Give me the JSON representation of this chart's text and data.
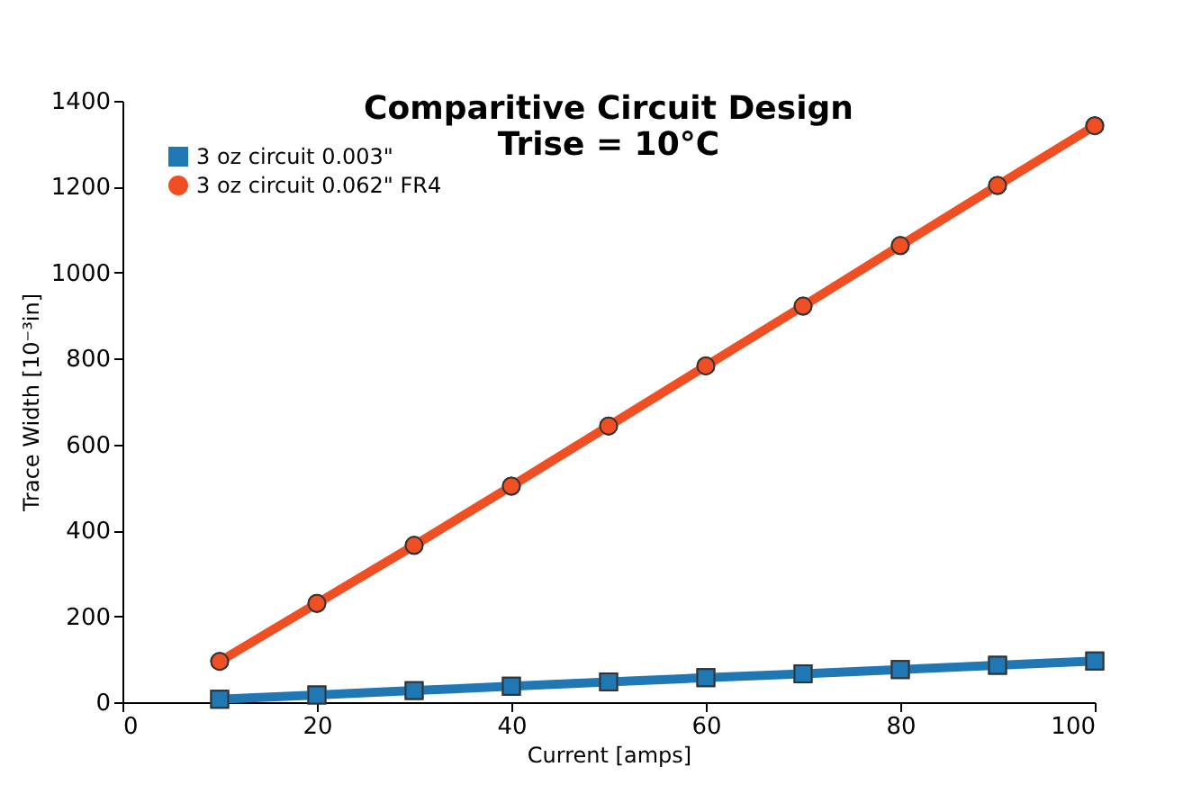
{
  "chart_data": {
    "type": "line",
    "title": [
      "Comparitive Circuit Design",
      "Trise = 10°C"
    ],
    "xlabel": "Current [amps]",
    "ylabel": "Trace Width [10⁻³in]",
    "x": [
      10,
      20,
      30,
      40,
      50,
      60,
      70,
      80,
      90,
      100
    ],
    "series": [
      {
        "name": "3 oz circuit 0.003\"",
        "color": "#1f77b4",
        "marker": "square",
        "values": [
          7,
          17,
          27,
          37,
          47,
          57,
          66,
          76,
          86,
          96
        ]
      },
      {
        "name": "3 oz circuit 0.062\" FR4",
        "color": "#f04e23",
        "marker": "circle",
        "values": [
          95,
          230,
          365,
          503,
          643,
          783,
          922,
          1063,
          1203,
          1342
        ]
      }
    ],
    "xlim": [
      0,
      100
    ],
    "xticks": [
      0,
      20,
      40,
      60,
      80,
      100
    ],
    "ylim": [
      0,
      1400
    ],
    "yticks": [
      0,
      200,
      400,
      600,
      800,
      1000,
      1200,
      1400
    ],
    "grid": false,
    "legend": "top left",
    "line_style": "solid"
  }
}
